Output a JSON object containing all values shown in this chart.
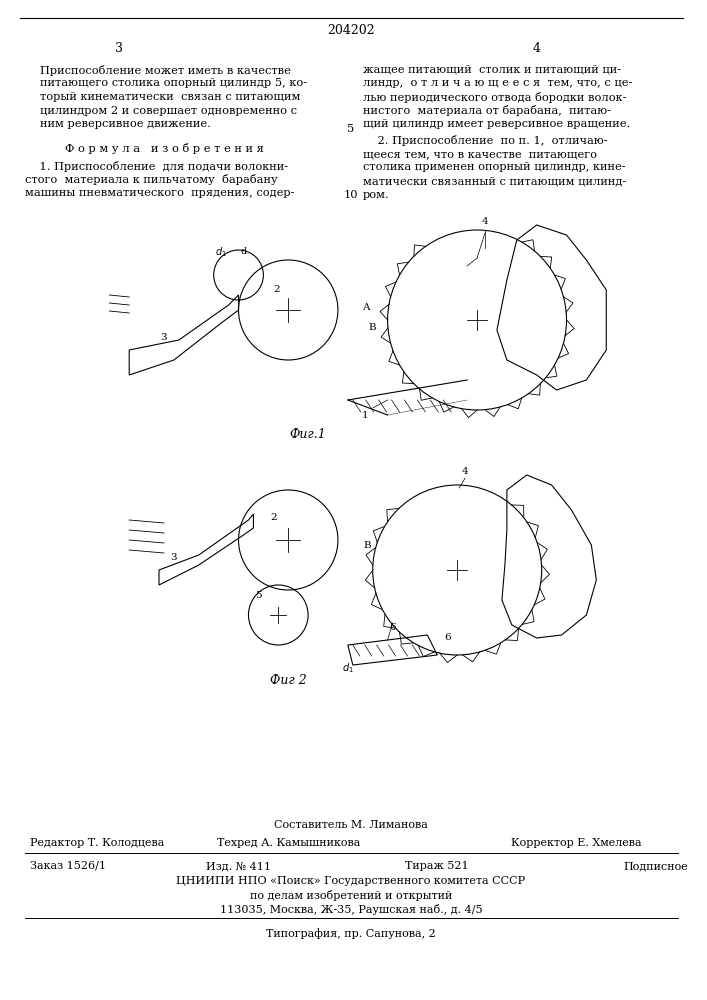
{
  "page_number": "204202",
  "col_left_number": "3",
  "col_right_number": "4",
  "background_color": "#ffffff",
  "text_color": "#000000",
  "col_left_para1": "Приспособление может иметь в качестве питающего столика опорный цилиндр 5, который кинематически  связан с питающим цилиндром 2 и совершает одновременно с ним реверсивное движение.",
  "formula_header": "Ф о р м у л а   и з о б р е т е н и я",
  "formula_item1": "    1. Приспособление  для подачи волокнистого  материала к пильчатому  барабану машины пневматического  прядения, содер-",
  "line_num_5": "5",
  "line_num_10": "10",
  "col_right_para1": "жащее питающий  столик и питающий цилиндр,  о т л и ч а ю щ е е с я  тем, что, с целью периодического отвода бородки волокнистого  материала от барабана,  питающий цилиндр имеет реверсивное вращение.",
  "col_right_para2": "    2. Приспособление  по п. 1,  отличающееся тем, что в качестве  питающего столика применен опорный цилиндр, кинематически связанный с питающим цилиндром.",
  "fig1_label": "Фиг.1",
  "fig2_label": "Фиг 2",
  "footer_composer_label": "Составитель М. Лиманова",
  "footer_editor": "Редактор Т. Колодцева",
  "footer_techred": "Техред А. Камышникова",
  "footer_corrector": "Корректор Е. Хмелева",
  "footer_order": "Заказ 1526/1",
  "footer_izd": "Изд. № 411",
  "footer_tirazh": "Тираж 521",
  "footer_podpisnoe": "Подписное",
  "footer_org_line1": "ЦНИИПИ НПО «Поиск» Государственного комитета СССР",
  "footer_org_line2": "по делам изобретений и открытий",
  "footer_org_line3": "113035, Москва, Ж-35, Раушская наб., д. 4/5",
  "footer_typography": "Типография, пр. Сапунова, 2"
}
